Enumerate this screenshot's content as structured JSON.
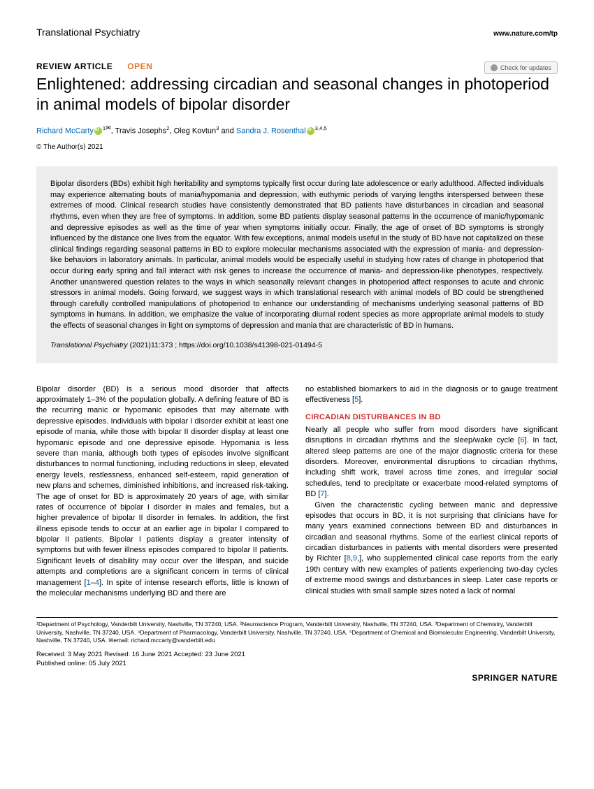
{
  "header": {
    "journal_name": "Translational Psychiatry",
    "journal_url": "www.nature.com/tp",
    "check_updates": "Check for updates"
  },
  "meta": {
    "article_type": "REVIEW ARTICLE",
    "open_label": "OPEN",
    "title": "Enlightened: addressing circadian and seasonal changes in photoperiod in animal models of bipolar disorder",
    "copyright": "© The Author(s) 2021"
  },
  "authors": {
    "a1_name": "Richard McCarty",
    "a1_aff": "1",
    "a2_name": "Travis Josephs",
    "a2_aff": "2",
    "a3_name": "Oleg Kovtun",
    "a3_aff": "3",
    "a4_name": "Sandra J. Rosenthal",
    "a4_aff": "3,4,5"
  },
  "abstract": {
    "text": "Bipolar disorders (BDs) exhibit high heritability and symptoms typically first occur during late adolescence or early adulthood. Affected individuals may experience alternating bouts of mania/hypomania and depression, with euthymic periods of varying lengths interspersed between these extremes of mood. Clinical research studies have consistently demonstrated that BD patients have disturbances in circadian and seasonal rhythms, even when they are free of symptoms. In addition, some BD patients display seasonal patterns in the occurrence of manic/hypomanic and depressive episodes as well as the time of year when symptoms initially occur. Finally, the age of onset of BD symptoms is strongly influenced by the distance one lives from the equator. With few exceptions, animal models useful in the study of BD have not capitalized on these clinical findings regarding seasonal patterns in BD to explore molecular mechanisms associated with the expression of mania- and depression-like behaviors in laboratory animals. In particular, animal models would be especially useful in studying how rates of change in photoperiod that occur during early spring and fall interact with risk genes to increase the occurrence of mania- and depression-like phenotypes, respectively. Another unanswered question relates to the ways in which seasonally relevant changes in photoperiod affect responses to acute and chronic stressors in animal models. Going forward, we suggest ways in which translational research with animal models of BD could be strengthened through carefully controlled manipulations of photoperiod to enhance our understanding of mechanisms underlying seasonal patterns of BD symptoms in humans. In addition, we emphasize the value of incorporating diurnal rodent species as more appropriate animal models to study the effects of seasonal changes in light on symptoms of depression and mania that are characteristic of BD in humans.",
    "citation_journal": "Translational Psychiatry",
    "citation_details": " (2021)11:373 ; https://doi.org/10.1038/s41398-021-01494-5"
  },
  "body": {
    "col1_p1a": "Bipolar disorder (BD) is a serious mood disorder that affects approximately 1–3% of the population globally. A defining feature of BD is the recurring manic or hypomanic episodes that may alternate with depressive episodes. Individuals with bipolar I disorder exhibit at least one episode of mania, while those with bipolar II disorder display at least one hypomanic episode and one depressive episode. Hypomania is less severe than mania, although both types of episodes involve significant disturbances to normal functioning, including reductions in sleep, elevated energy levels, restlessness, enhanced self-esteem, rapid generation of new plans and schemes, diminished inhibitions, and increased risk-taking. The age of onset for BD is approximately 20 years of age, with similar rates of occurrence of bipolar I disorder in males and females, but a higher prevalence of bipolar II disorder in females. In addition, the first illness episode tends to occur at an earlier age in bipolar I compared to bipolar II patients. Bipolar I patients display a greater intensity of symptoms but with fewer illness episodes compared to bipolar II patients. Significant levels of disability may occur over the lifespan, and suicide attempts and completions are a significant concern in terms of clinical management [",
    "col1_ref1": "1",
    "col1_dash": "–",
    "col1_ref4": "4",
    "col1_p1b": "]. In spite of intense research efforts, little is known of the molecular mechanisms underlying BD and there are",
    "col2_p1a": "no established biomarkers to aid in the diagnosis or to gauge treatment effectiveness [",
    "col2_ref5": "5",
    "col2_p1b": "].",
    "section_heading": "CIRCADIAN DISTURBANCES IN BD",
    "col2_p2a": "Nearly all people who suffer from mood disorders have significant disruptions in circadian rhythms and the sleep/wake cycle [",
    "col2_ref6": "6",
    "col2_p2b": "]. In fact, altered sleep patterns are one of the major diagnostic criteria for these disorders. Moreover, environmental disruptions to circadian rhythms, including shift work, travel across time zones, and irregular social schedules, tend to precipitate or exacerbate mood-related symptoms of BD [",
    "col2_ref7": "7",
    "col2_p2c": "].",
    "col2_p3a": "Given the characteristic cycling between manic and depressive episodes that occurs in BD, it is not surprising that clinicians have for many years examined connections between BD and disturbances in circadian and seasonal rhythms. Some of the earliest clinical reports of circadian disturbances in patients with mental disorders were presented by Richter [",
    "col2_ref8": "8",
    "col2_comma": ",",
    "col2_ref9": "9",
    "col2_p3b": ",], who supplemented clinical case reports from the early 19th century with new examples of patients experiencing two-day cycles of extreme mood swings and disturbances in sleep. Later case reports or clinical studies with small sample sizes noted a lack of normal"
  },
  "footer": {
    "affiliations": "¹Department of Psychology, Vanderbilt University, Nashville, TN 37240, USA. ²Neuroscience Program, Vanderbilt University, Nashville, TN 37240, USA. ³Department of Chemistry, Vanderbilt University, Nashville, TN 37240, USA. ⁴Department of Pharmacology, Vanderbilt University, Nashville, TN 37240, USA. ⁵Department of Chemical and Biomolecular Engineering, Vanderbilt University, Nashville, TN 37240, USA. ✉email: richard.mccarty@vanderbilt.edu",
    "dates": "Received: 3 May 2021  Revised: 16 June 2021  Accepted: 23 June 2021",
    "pub_online": "Published online: 05 July 2021",
    "publisher": "SPRINGER NATURE"
  },
  "colors": {
    "open_orange": "#e87722",
    "heading_red": "#d32f2f",
    "link_blue": "#0066b3",
    "abstract_bg": "#ededed",
    "orcid_green": "#a6ce39"
  }
}
